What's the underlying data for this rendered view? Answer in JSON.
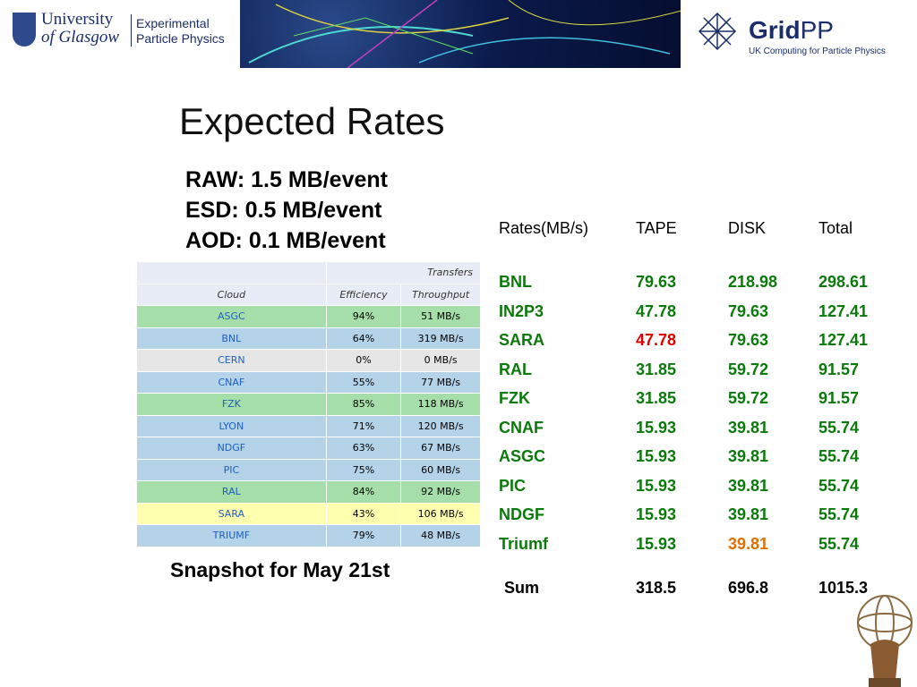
{
  "header": {
    "university": [
      "University",
      "of Glasgow"
    ],
    "department": [
      "Experimental",
      "Particle Physics"
    ],
    "gridpp_name": "Grid",
    "gridpp_suffix": "PP",
    "gridpp_subtitle": "UK Computing for Particle Physics"
  },
  "title": "Expected Rates",
  "event_sizes": [
    "RAW: 1.5 MB/event",
    "ESD: 0.5 MB/event",
    "AOD: 0.1 MB/event"
  ],
  "snapshot": {
    "group_header": "Transfers",
    "columns": [
      "Cloud",
      "Efficiency",
      "Throughput"
    ],
    "rows": [
      {
        "cloud": "ASGC",
        "eff": "94%",
        "thr": "51 MB/s",
        "color": "#a6deaa"
      },
      {
        "cloud": "BNL",
        "eff": "64%",
        "thr": "319 MB/s",
        "color": "#b4d2e8"
      },
      {
        "cloud": "CERN",
        "eff": "0%",
        "thr": "0 MB/s",
        "color": "#e6e6e6"
      },
      {
        "cloud": "CNAF",
        "eff": "55%",
        "thr": "77 MB/s",
        "color": "#b4d2e8"
      },
      {
        "cloud": "FZK",
        "eff": "85%",
        "thr": "118 MB/s",
        "color": "#a6deaa"
      },
      {
        "cloud": "LYON",
        "eff": "71%",
        "thr": "120 MB/s",
        "color": "#b4d2e8"
      },
      {
        "cloud": "NDGF",
        "eff": "63%",
        "thr": "67 MB/s",
        "color": "#b4d2e8"
      },
      {
        "cloud": "PIC",
        "eff": "75%",
        "thr": "60 MB/s",
        "color": "#b4d2e8"
      },
      {
        "cloud": "RAL",
        "eff": "84%",
        "thr": "92 MB/s",
        "color": "#a6deaa"
      },
      {
        "cloud": "SARA",
        "eff": "43%",
        "thr": "106 MB/s",
        "color": "#ffffb0"
      },
      {
        "cloud": "TRIUMF",
        "eff": "79%",
        "thr": "48 MB/s",
        "color": "#b4d2e8"
      }
    ],
    "caption": "Snapshot for May 21st"
  },
  "rates": {
    "headers": [
      "Rates(MB/s)",
      "TAPE",
      "DISK",
      "Total"
    ],
    "rows": [
      {
        "site": "BNL",
        "tape": "79.63",
        "disk": "218.98",
        "total": "298.61"
      },
      {
        "site": "IN2P3",
        "tape": "47.78",
        "disk": "79.63",
        "total": "127.41"
      },
      {
        "site": "SARA",
        "tape": "47.78",
        "disk": "79.63",
        "total": "127.41"
      },
      {
        "site": "RAL",
        "tape": "31.85",
        "disk": "59.72",
        "total": "91.57"
      },
      {
        "site": "FZK",
        "tape": "31.85",
        "disk": "59.72",
        "total": "91.57"
      },
      {
        "site": "CNAF",
        "tape": "15.93",
        "disk": "39.81",
        "total": "55.74"
      },
      {
        "site": "ASGC",
        "tape": "15.93",
        "disk": "39.81",
        "total": "55.74"
      },
      {
        "site": "PIC",
        "tape": "15.93",
        "disk": "39.81",
        "total": "55.74"
      },
      {
        "site": "NDGF",
        "tape": "15.93",
        "disk": "39.81",
        "total": "55.74"
      },
      {
        "site": "Triumf",
        "tape": "15.93",
        "disk": "39.81",
        "total": "55.74"
      }
    ],
    "sum": {
      "label": "Sum",
      "tape": "318.5",
      "disk": "696.8",
      "total": "1015.3"
    },
    "colors": {
      "values": "#0a7a0a",
      "sara_tape": "#e00000",
      "triumf_disk": "#e07000"
    }
  }
}
